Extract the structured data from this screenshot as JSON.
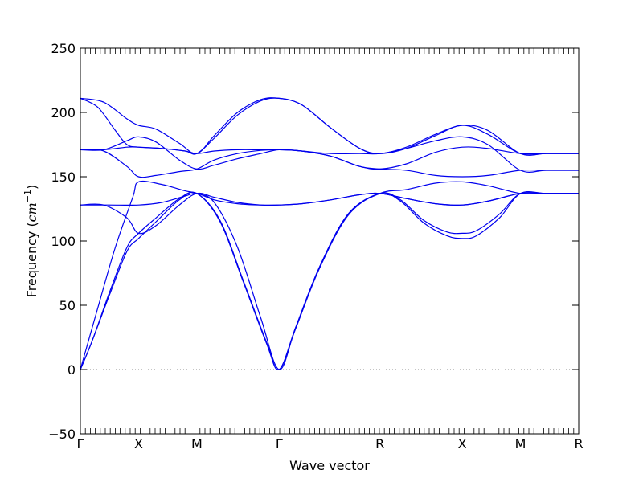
{
  "chart_data": {
    "type": "line",
    "title": "",
    "xlabel": "Wave vector",
    "ylabel_main": "Frequency (",
    "ylabel_unit": "cm",
    "ylabel_exp": "−1",
    "ylabel_close": ")",
    "ylim": [
      -50,
      250
    ],
    "yticks": [
      -50,
      0,
      50,
      100,
      150,
      200,
      250
    ],
    "x_points": [
      {
        "label": "Γ",
        "pos": 0
      },
      {
        "label": "X",
        "pos": 1
      },
      {
        "label": "M",
        "pos": 2
      },
      {
        "label": "Γ",
        "pos": 3.414
      },
      {
        "label": "R",
        "pos": 5.146
      },
      {
        "label": "X",
        "pos": 6.56
      },
      {
        "label": "M",
        "pos": 7.56
      },
      {
        "label": "R",
        "pos": 8.56
      }
    ],
    "xlim": [
      0,
      8.56
    ],
    "line_color": "#0000ee",
    "zero_line": {
      "y": 0,
      "style": "dotted",
      "color": "#888888"
    },
    "series": [
      {
        "values": [
          [
            0,
            0
          ],
          [
            0.2,
            22
          ],
          [
            0.5,
            58
          ],
          [
            0.8,
            92
          ],
          [
            1,
            102
          ],
          [
            1.3,
            115
          ],
          [
            1.7,
            132
          ],
          [
            2,
            137
          ],
          [
            2.4,
            115
          ],
          [
            2.8,
            68
          ],
          [
            3.2,
            20
          ],
          [
            3.414,
            0
          ],
          [
            3.7,
            32
          ],
          [
            4.1,
            78
          ],
          [
            4.6,
            120
          ],
          [
            5.146,
            137
          ],
          [
            5.5,
            131
          ],
          [
            5.9,
            114
          ],
          [
            6.3,
            104
          ],
          [
            6.56,
            102
          ],
          [
            6.8,
            104
          ],
          [
            7.2,
            118
          ],
          [
            7.56,
            137
          ],
          [
            8.0,
            137
          ],
          [
            8.56,
            137
          ]
        ]
      },
      {
        "values": [
          [
            0,
            0
          ],
          [
            0.2,
            22
          ],
          [
            0.5,
            60
          ],
          [
            0.8,
            95
          ],
          [
            1,
            106
          ],
          [
            1.3,
            118
          ],
          [
            1.7,
            133
          ],
          [
            2,
            137
          ],
          [
            2.4,
            116
          ],
          [
            2.8,
            69
          ],
          [
            3.2,
            21
          ],
          [
            3.414,
            0
          ],
          [
            3.7,
            33
          ],
          [
            4.1,
            79
          ],
          [
            4.6,
            121
          ],
          [
            5.146,
            137
          ],
          [
            5.5,
            132
          ],
          [
            5.9,
            116
          ],
          [
            6.3,
            107
          ],
          [
            6.56,
            106
          ],
          [
            6.8,
            108
          ],
          [
            7.2,
            121
          ],
          [
            7.56,
            137
          ],
          [
            8.0,
            137
          ],
          [
            8.56,
            137
          ]
        ]
      },
      {
        "values": [
          [
            0,
            0
          ],
          [
            0.3,
            48
          ],
          [
            0.6,
            95
          ],
          [
            0.9,
            134
          ],
          [
            1,
            146
          ],
          [
            1.4,
            144
          ],
          [
            1.8,
            139
          ],
          [
            2,
            137
          ],
          [
            2.3,
            130
          ],
          [
            2.7,
            95
          ],
          [
            3.1,
            40
          ],
          [
            3.414,
            0
          ],
          [
            3.7,
            33
          ],
          [
            4.1,
            79
          ],
          [
            4.6,
            121
          ],
          [
            5.146,
            137
          ],
          [
            5.6,
            140
          ],
          [
            6.1,
            145
          ],
          [
            6.56,
            146
          ],
          [
            7.0,
            143
          ],
          [
            7.56,
            137
          ],
          [
            8.0,
            137
          ],
          [
            8.56,
            137
          ]
        ]
      },
      {
        "values": [
          [
            0,
            128
          ],
          [
            0.4,
            128
          ],
          [
            0.8,
            118
          ],
          [
            1,
            106
          ],
          [
            1.3,
            112
          ],
          [
            1.7,
            128
          ],
          [
            2,
            137
          ],
          [
            2.3,
            134
          ],
          [
            2.7,
            130
          ],
          [
            3.1,
            128
          ],
          [
            3.414,
            128
          ],
          [
            3.8,
            129
          ],
          [
            4.3,
            132
          ],
          [
            4.8,
            136
          ],
          [
            5.146,
            137
          ],
          [
            5.6,
            133
          ],
          [
            6.1,
            129
          ],
          [
            6.56,
            128
          ],
          [
            7.0,
            131
          ],
          [
            7.56,
            137
          ],
          [
            8.0,
            137
          ],
          [
            8.56,
            137
          ]
        ]
      },
      {
        "values": [
          [
            0,
            128
          ],
          [
            0.5,
            128
          ],
          [
            1,
            128
          ],
          [
            1.4,
            130
          ],
          [
            1.8,
            135
          ],
          [
            2,
            137
          ],
          [
            2.3,
            132
          ],
          [
            2.7,
            129
          ],
          [
            3.1,
            128
          ],
          [
            3.414,
            128
          ],
          [
            3.8,
            129
          ],
          [
            4.3,
            132
          ],
          [
            4.8,
            136
          ],
          [
            5.146,
            137
          ],
          [
            5.6,
            133
          ],
          [
            6.1,
            129
          ],
          [
            6.56,
            128
          ],
          [
            7.0,
            131
          ],
          [
            7.56,
            137
          ],
          [
            8.0,
            137
          ],
          [
            8.56,
            137
          ]
        ]
      },
      {
        "values": [
          [
            0,
            171
          ],
          [
            0.4,
            170
          ],
          [
            0.8,
            158
          ],
          [
            1,
            150
          ],
          [
            1.3,
            151
          ],
          [
            1.7,
            154
          ],
          [
            2,
            156
          ],
          [
            2.3,
            163
          ],
          [
            2.7,
            168
          ],
          [
            3.1,
            170.5
          ],
          [
            3.414,
            171
          ],
          [
            3.8,
            170
          ],
          [
            4.3,
            166
          ],
          [
            4.8,
            158
          ],
          [
            5.146,
            156
          ],
          [
            5.6,
            155
          ],
          [
            6.1,
            151
          ],
          [
            6.56,
            150
          ],
          [
            7.0,
            151
          ],
          [
            7.56,
            155
          ],
          [
            8.0,
            155
          ],
          [
            8.56,
            155
          ]
        ]
      },
      {
        "values": [
          [
            0,
            171
          ],
          [
            0.4,
            171
          ],
          [
            0.8,
            173
          ],
          [
            1,
            173
          ],
          [
            1.4,
            172
          ],
          [
            1.8,
            170
          ],
          [
            2,
            168
          ],
          [
            2.3,
            170
          ],
          [
            2.7,
            171
          ],
          [
            3.1,
            171
          ],
          [
            3.414,
            171
          ],
          [
            3.8,
            170
          ],
          [
            4.3,
            166
          ],
          [
            4.8,
            158
          ],
          [
            5.146,
            156
          ],
          [
            5.6,
            160
          ],
          [
            6.1,
            169
          ],
          [
            6.56,
            173
          ],
          [
            7.0,
            172
          ],
          [
            7.56,
            168
          ],
          [
            8.0,
            168
          ],
          [
            8.56,
            168
          ]
        ]
      },
      {
        "values": [
          [
            0,
            171
          ],
          [
            0.4,
            171
          ],
          [
            0.8,
            178
          ],
          [
            1,
            181
          ],
          [
            1.3,
            177
          ],
          [
            1.7,
            163
          ],
          [
            2,
            156
          ],
          [
            2.3,
            159
          ],
          [
            2.7,
            164
          ],
          [
            3.1,
            168
          ],
          [
            3.414,
            171
          ],
          [
            3.8,
            170
          ],
          [
            4.3,
            168
          ],
          [
            4.8,
            168
          ],
          [
            5.146,
            168
          ],
          [
            5.6,
            172
          ],
          [
            6.1,
            178
          ],
          [
            6.56,
            181
          ],
          [
            7.0,
            175
          ],
          [
            7.56,
            155
          ],
          [
            8.0,
            155
          ],
          [
            8.56,
            155
          ]
        ]
      },
      {
        "values": [
          [
            0,
            211
          ],
          [
            0.3,
            204
          ],
          [
            0.6,
            186
          ],
          [
            0.8,
            175
          ],
          [
            1,
            173
          ],
          [
            1.4,
            172
          ],
          [
            1.8,
            170
          ],
          [
            2,
            168
          ],
          [
            2.3,
            180
          ],
          [
            2.7,
            198
          ],
          [
            3.1,
            209
          ],
          [
            3.414,
            211
          ],
          [
            3.8,
            206
          ],
          [
            4.3,
            188
          ],
          [
            4.8,
            172
          ],
          [
            5.146,
            168
          ],
          [
            5.6,
            172
          ],
          [
            6.1,
            182
          ],
          [
            6.56,
            190
          ],
          [
            7.0,
            183
          ],
          [
            7.56,
            168
          ],
          [
            8.0,
            168
          ],
          [
            8.56,
            168
          ]
        ]
      },
      {
        "values": [
          [
            0,
            211
          ],
          [
            0.4,
            208
          ],
          [
            0.8,
            195
          ],
          [
            1,
            190
          ],
          [
            1.3,
            187
          ],
          [
            1.7,
            176
          ],
          [
            2,
            168
          ],
          [
            2.3,
            182
          ],
          [
            2.7,
            200
          ],
          [
            3.1,
            210
          ],
          [
            3.414,
            211
          ],
          [
            3.8,
            206
          ],
          [
            4.3,
            188
          ],
          [
            4.8,
            172
          ],
          [
            5.146,
            168
          ],
          [
            5.6,
            173
          ],
          [
            6.1,
            183
          ],
          [
            6.56,
            190
          ],
          [
            7.0,
            186
          ],
          [
            7.56,
            168
          ],
          [
            8.0,
            168
          ],
          [
            8.56,
            168
          ]
        ]
      }
    ]
  }
}
